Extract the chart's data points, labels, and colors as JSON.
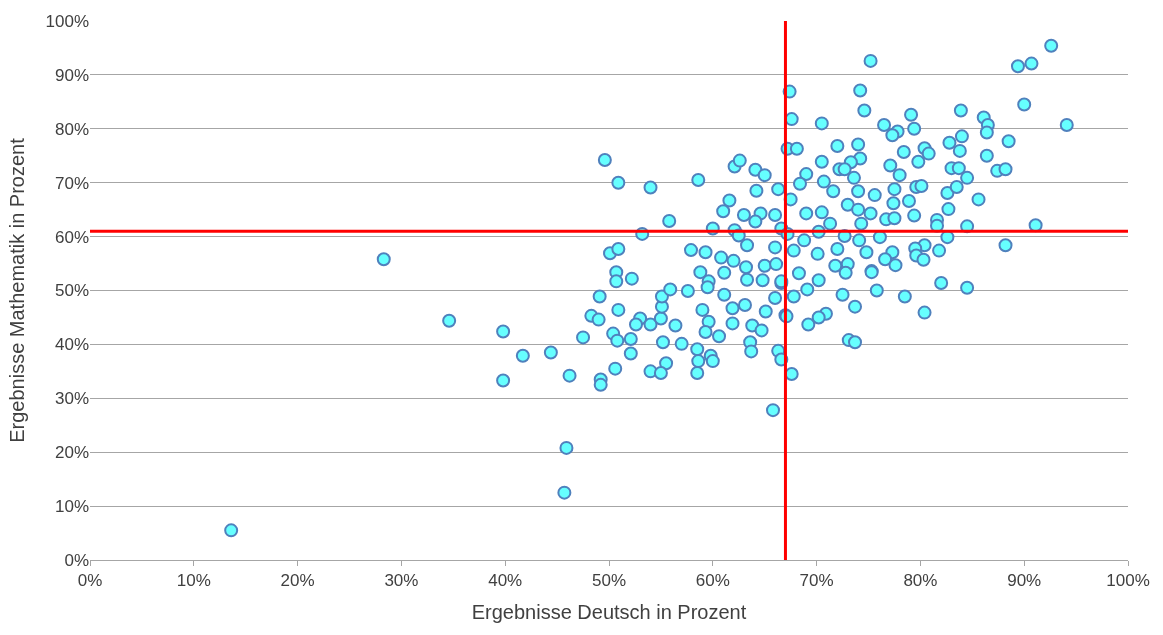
{
  "chart_data": {
    "type": "scatter",
    "xlabel": "Ergebnisse Deutsch in Prozent",
    "ylabel": "Ergebnisse Mathematik in Prozent",
    "x": [
      13.6,
      28.3,
      45.9,
      45.7,
      49.6,
      50.9,
      54.0,
      58.6,
      62.1,
      62.6,
      64.1,
      65.0,
      64.2,
      66.3,
      61.6,
      61.0,
      55.8,
      53.2,
      60.0,
      63.0,
      64.6,
      66.0,
      62.1,
      64.1,
      66.6,
      50.1,
      50.9,
      50.7,
      50.7,
      52.2,
      57.9,
      59.3,
      60.8,
      63.3,
      62.5,
      66.0,
      58.8,
      61.1,
      62.0,
      63.2,
      65.0,
      66.1,
      59.6,
      63.3,
      64.8,
      66.6,
      49.1,
      50.9,
      34.6,
      39.8,
      48.3,
      49.0,
      47.5,
      41.7,
      44.4,
      39.8,
      46.2,
      49.2,
      49.2,
      50.6,
      50.4,
      50.8,
      52.1,
      52.1,
      53.0,
      52.6,
      54.0,
      55.0,
      56.4,
      55.1,
      55.1,
      55.9,
      57.6,
      59.5,
      59.0,
      59.6,
      59.3,
      60.6,
      61.1,
      61.9,
      63.1,
      61.9,
      63.8,
      64.7,
      65.1,
      66.0,
      67.0,
      55.2,
      57.0,
      58.5,
      59.8,
      55.5,
      54.0,
      55.0,
      58.5,
      58.6,
      60.0,
      63.6,
      63.7,
      66.3,
      66.6,
      65.8,
      75.2,
      92.6,
      89.4,
      90.7,
      67.4,
      74.2,
      74.6,
      90.0,
      67.6,
      70.5,
      79.1,
      83.9,
      86.1,
      86.5,
      86.4,
      94.1,
      76.5,
      77.8,
      77.3,
      79.4,
      84.0,
      82.8,
      88.5,
      67.2,
      68.1,
      72.0,
      74.0,
      70.5,
      74.2,
      73.3,
      78.4,
      80.4,
      80.8,
      79.8,
      83.8,
      86.4,
      77.1,
      78.0,
      83.0,
      83.7,
      84.5,
      87.4,
      88.2,
      69.0,
      68.4,
      70.7,
      72.2,
      72.7,
      73.6,
      71.6,
      74.0,
      75.6,
      73.0,
      77.5,
      77.4,
      78.9,
      79.6,
      80.1,
      82.6,
      83.5,
      85.6,
      82.7,
      79.4,
      81.6,
      81.6,
      84.5,
      91.1,
      82.6,
      88.2,
      80.4,
      79.5,
      79.6,
      81.8,
      67.5,
      69.0,
      70.5,
      74.0,
      75.2,
      71.3,
      74.3,
      76.7,
      77.5,
      67.2,
      68.8,
      70.2,
      72.7,
      74.1,
      76.1,
      72.0,
      74.8,
      77.3,
      76.6,
      77.6,
      71.8,
      73.0,
      75.3,
      70.1,
      67.8,
      82.0,
      84.5,
      78.5,
      80.4,
      75.8,
      75.3,
      72.5,
      73.7,
      73.1,
      73.7,
      70.9,
      70.2,
      69.2,
      67.1,
      67.6,
      67.8,
      69.1,
      70.2,
      68.3,
      72.8,
      80.3,
      66.6
    ],
    "values": [
      5.5,
      55.8,
      20.8,
      12.5,
      74.2,
      70.0,
      69.1,
      70.5,
      73.0,
      74.1,
      72.4,
      71.4,
      68.5,
      68.8,
      66.7,
      64.7,
      62.9,
      60.5,
      61.5,
      64.0,
      64.3,
      64.0,
      61.2,
      62.8,
      61.5,
      56.9,
      57.7,
      53.4,
      51.7,
      52.2,
      57.5,
      57.1,
      56.1,
      58.4,
      60.2,
      58.0,
      53.4,
      53.3,
      55.5,
      54.3,
      54.6,
      54.9,
      51.7,
      52.0,
      51.9,
      51.4,
      48.9,
      46.4,
      44.4,
      42.4,
      45.3,
      44.6,
      41.3,
      37.9,
      38.5,
      33.3,
      34.2,
      33.5,
      32.5,
      35.5,
      42.0,
      40.7,
      41.0,
      38.3,
      44.8,
      43.7,
      43.7,
      44.8,
      43.5,
      47.0,
      48.9,
      50.2,
      49.9,
      50.6,
      46.4,
      44.2,
      42.3,
      41.5,
      49.2,
      46.7,
      47.3,
      43.9,
      43.5,
      42.6,
      46.1,
      48.6,
      45.4,
      40.4,
      40.1,
      39.1,
      37.9,
      36.5,
      35.0,
      34.7,
      34.7,
      36.9,
      36.9,
      40.4,
      38.7,
      38.8,
      37.2,
      27.8,
      92.6,
      95.4,
      91.6,
      92.1,
      86.9,
      87.1,
      83.4,
      84.5,
      81.8,
      81.0,
      82.6,
      83.4,
      82.1,
      80.7,
      79.3,
      80.7,
      80.7,
      79.5,
      78.8,
      80.0,
      78.6,
      77.4,
      77.7,
      76.3,
      76.3,
      76.8,
      77.1,
      73.9,
      74.5,
      73.8,
      75.7,
      76.4,
      75.4,
      73.9,
      75.9,
      75.0,
      73.2,
      71.4,
      72.7,
      72.7,
      70.9,
      72.2,
      72.5,
      71.6,
      69.8,
      70.2,
      72.5,
      72.5,
      70.9,
      68.4,
      68.4,
      67.7,
      65.9,
      68.8,
      66.2,
      66.6,
      69.2,
      69.4,
      68.1,
      69.2,
      66.9,
      65.1,
      63.9,
      63.1,
      62.0,
      61.9,
      62.1,
      59.9,
      58.4,
      58.4,
      57.8,
      56.5,
      57.4,
      66.9,
      64.3,
      64.5,
      65.0,
      64.3,
      62.4,
      62.4,
      63.2,
      63.4,
      60.5,
      59.3,
      60.9,
      60.1,
      59.3,
      59.9,
      57.7,
      57.1,
      57.1,
      55.8,
      54.7,
      54.6,
      54.9,
      53.6,
      56.8,
      57.4,
      51.4,
      50.5,
      48.9,
      45.9,
      50.0,
      53.4,
      49.2,
      47.0,
      40.8,
      40.4,
      45.7,
      45.0,
      43.7,
      45.2,
      34.5,
      48.9,
      50.2,
      51.9,
      53.2,
      53.3,
      55.7,
      51.7
    ],
    "color": "#66ffff",
    "marker": "circle",
    "grid": "y",
    "xlim": [
      0,
      100
    ],
    "ylim": [
      0,
      100
    ],
    "xticks": [
      {
        "value": 0,
        "label": "0%"
      },
      {
        "value": 10,
        "label": "10%"
      },
      {
        "value": 20,
        "label": "20%"
      },
      {
        "value": 30,
        "label": "30%"
      },
      {
        "value": 40,
        "label": "40%"
      },
      {
        "value": 50,
        "label": "50%"
      },
      {
        "value": 60,
        "label": "60%"
      },
      {
        "value": 70,
        "label": "70%"
      },
      {
        "value": 80,
        "label": "80%"
      },
      {
        "value": 90,
        "label": "90%"
      },
      {
        "value": 100,
        "label": "100%"
      }
    ],
    "yticks": [
      {
        "value": 0,
        "label": "0%"
      },
      {
        "value": 10,
        "label": "10%"
      },
      {
        "value": 20,
        "label": "20%"
      },
      {
        "value": 30,
        "label": "30%"
      },
      {
        "value": 40,
        "label": "40%"
      },
      {
        "value": 50,
        "label": "50%"
      },
      {
        "value": 60,
        "label": "60%"
      },
      {
        "value": 70,
        "label": "70%"
      },
      {
        "value": 80,
        "label": "80%"
      },
      {
        "value": 90,
        "label": "90%"
      },
      {
        "value": 100,
        "label": "100%"
      }
    ],
    "ref_lines": [
      {
        "axis": "x",
        "value": 67,
        "color": "#ff0000"
      },
      {
        "axis": "y",
        "value": 61,
        "color": "#ff0000"
      }
    ]
  }
}
